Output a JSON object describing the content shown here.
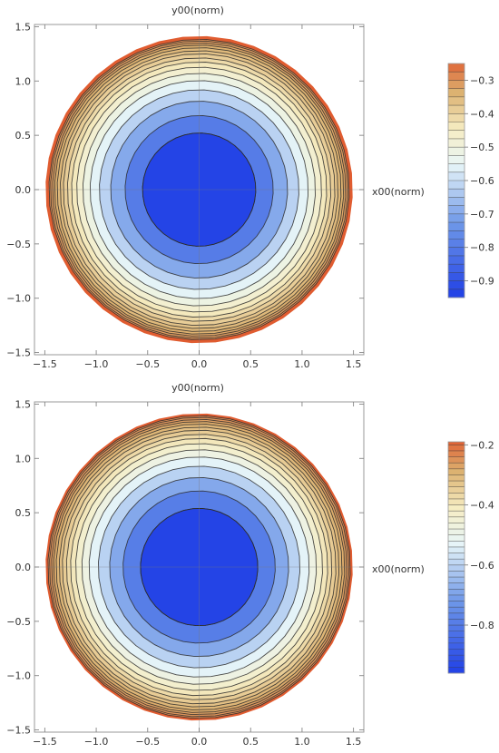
{
  "chart_data": [
    {
      "type": "contour",
      "xlabel": "x00(norm)",
      "ylabel": "y00(norm)",
      "xlim": [
        -1.6,
        1.6
      ],
      "ylim": [
        -1.52,
        1.52
      ],
      "xticks": [
        "-1.5",
        "-1.0",
        "-0.5",
        "0.0",
        "0.5",
        "1.0",
        "1.5"
      ],
      "yticks": [
        "-1.5",
        "-1.0",
        "-0.5",
        "0.0",
        "0.5",
        "1.0",
        "1.5"
      ],
      "center": [
        0.0,
        0.0
      ],
      "domain_radius": 1.48,
      "contour_radii": [
        0.55,
        0.72,
        0.86,
        0.97,
        1.06,
        1.13,
        1.19,
        1.24,
        1.28,
        1.32,
        1.35,
        1.38,
        1.405,
        1.425,
        1.445,
        1.46
      ],
      "value_range": [
        -0.95,
        -0.25
      ],
      "colorbar_ticks": [
        "-0.3",
        "-0.4",
        "-0.5",
        "-0.6",
        "-0.7",
        "-0.8",
        "-0.9"
      ],
      "colorbar_tick_values": [
        -0.3,
        -0.4,
        -0.5,
        -0.6,
        -0.7,
        -0.8,
        -0.9
      ],
      "colorbar_levels": [
        -0.95,
        -0.925,
        -0.9,
        -0.875,
        -0.85,
        -0.825,
        -0.8,
        -0.775,
        -0.75,
        -0.725,
        -0.7,
        -0.675,
        -0.65,
        -0.625,
        -0.6,
        -0.575,
        -0.55,
        -0.525,
        -0.5,
        -0.475,
        -0.45,
        -0.425,
        -0.4,
        -0.375,
        -0.35,
        -0.325,
        -0.3,
        -0.275,
        -0.25
      ]
    },
    {
      "type": "contour",
      "xlabel": "x00(norm)",
      "ylabel": "y00(norm)",
      "xlim": [
        -1.6,
        1.6
      ],
      "ylim": [
        -1.52,
        1.52
      ],
      "xticks": [
        "-1.5",
        "-1.0",
        "-0.5",
        "0.0",
        "0.5",
        "1.0",
        "1.5"
      ],
      "yticks": [
        "-1.5",
        "-1.0",
        "-0.5",
        "0.0",
        "0.5",
        "1.0",
        "1.5"
      ],
      "center": [
        0.0,
        0.0
      ],
      "domain_radius": 1.48,
      "contour_radii": [
        0.57,
        0.74,
        0.87,
        0.98,
        1.07,
        1.14,
        1.2,
        1.25,
        1.29,
        1.33,
        1.36,
        1.39,
        1.415,
        1.435,
        1.455,
        1.47
      ],
      "value_range": [
        -0.96,
        -0.19
      ],
      "colorbar_ticks": [
        "-0.2",
        "-0.4",
        "-0.6",
        "-0.8"
      ],
      "colorbar_tick_values": [
        -0.2,
        -0.4,
        -0.6,
        -0.8
      ],
      "colorbar_levels": [
        -0.96,
        -0.94,
        -0.92,
        -0.9,
        -0.88,
        -0.86,
        -0.84,
        -0.82,
        -0.8,
        -0.78,
        -0.76,
        -0.74,
        -0.72,
        -0.7,
        -0.68,
        -0.66,
        -0.64,
        -0.62,
        -0.6,
        -0.58,
        -0.56,
        -0.54,
        -0.52,
        -0.5,
        -0.48,
        -0.46,
        -0.44,
        -0.42,
        -0.4,
        -0.38,
        -0.36,
        -0.34,
        -0.32,
        -0.3,
        -0.28,
        -0.26,
        -0.24,
        -0.22,
        -0.2,
        -0.19
      ]
    }
  ],
  "colors": {
    "low": "#2444e6",
    "mid_blue": "#6f98e8",
    "light": "#e8f6f8",
    "cream": "#f6edc3",
    "tan": "#dcb170",
    "high": "#e05c30",
    "contour_line": "#2c2c2c"
  }
}
